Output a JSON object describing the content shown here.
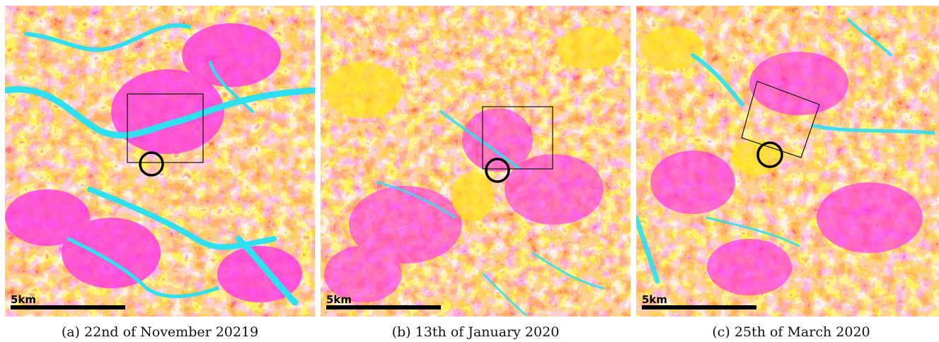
{
  "colors": {
    "magenta": "#ff2ee8",
    "yellow": "#ffe21a",
    "orange": "#f6a04a",
    "pink": "#f06bb8",
    "cyan": "#2fe0f0"
  },
  "panels": [
    {
      "scale_label": "5km",
      "caption": "(a) 22nd of November 20219"
    },
    {
      "scale_label": "5km",
      "caption": "(b) 13th of January 2020"
    },
    {
      "scale_label": "5km",
      "caption": "(c) 25th of March 2020"
    }
  ]
}
